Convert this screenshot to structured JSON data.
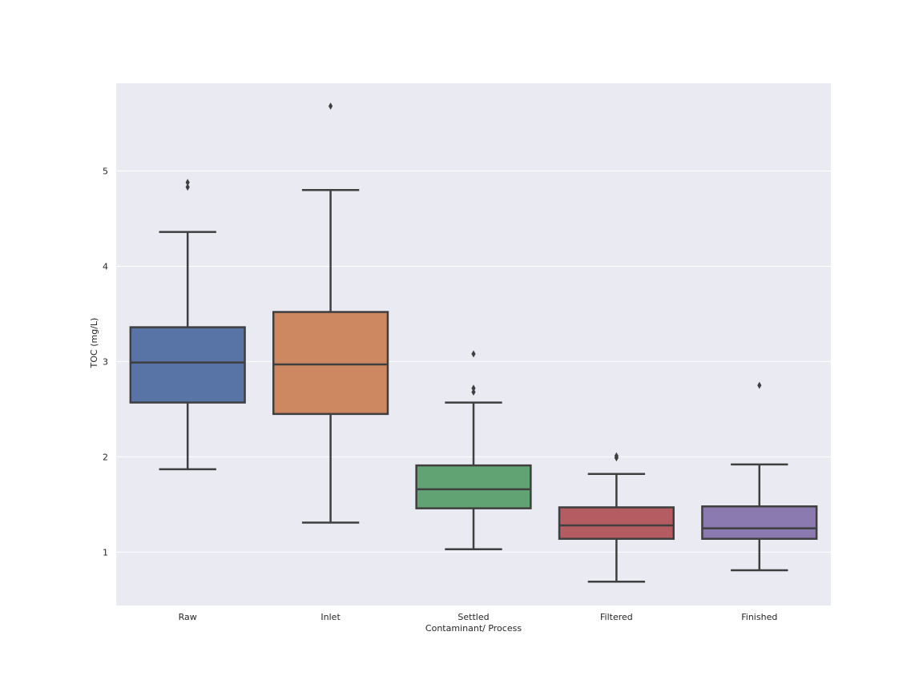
{
  "chart_data": {
    "type": "box",
    "title": "",
    "xlabel": "Contaminant/ Process",
    "ylabel": "TOC (mg/L)",
    "ylim": [
      0.44,
      5.92
    ],
    "yticks": [
      "1",
      "2",
      "3",
      "4",
      "5"
    ],
    "grid": true,
    "categories": [
      "Raw",
      "Inlet",
      "Settled",
      "Filtered",
      "Finished"
    ],
    "boxes": [
      {
        "category": "Raw",
        "color": "#5874A6",
        "whisker_low": 1.87,
        "q1": 2.57,
        "median": 2.99,
        "q3": 3.36,
        "whisker_high": 4.36,
        "outliers": [
          4.83,
          4.88
        ]
      },
      {
        "category": "Inlet",
        "color": "#CD8862",
        "whisker_low": 1.31,
        "q1": 2.45,
        "median": 2.97,
        "q3": 3.52,
        "whisker_high": 4.8,
        "outliers": [
          5.68
        ]
      },
      {
        "category": "Settled",
        "color": "#62A374",
        "whisker_low": 1.03,
        "q1": 1.46,
        "median": 1.66,
        "q3": 1.91,
        "whisker_high": 2.57,
        "outliers": [
          2.68,
          2.72,
          3.08
        ]
      },
      {
        "category": "Filtered",
        "color": "#B55C62",
        "whisker_low": 0.69,
        "q1": 1.14,
        "median": 1.28,
        "q3": 1.47,
        "whisker_high": 1.82,
        "outliers": [
          1.99,
          2.01
        ]
      },
      {
        "category": "Finished",
        "color": "#8A7AAF",
        "whisker_low": 0.81,
        "q1": 1.14,
        "median": 1.25,
        "q3": 1.48,
        "whisker_high": 1.92,
        "outliers": [
          2.75
        ]
      }
    ],
    "colors": {
      "plot_background": "#EAEAF2",
      "gridline": "#FFFFFF",
      "box_edge": "#3F3F3F",
      "text": "#262626"
    }
  }
}
